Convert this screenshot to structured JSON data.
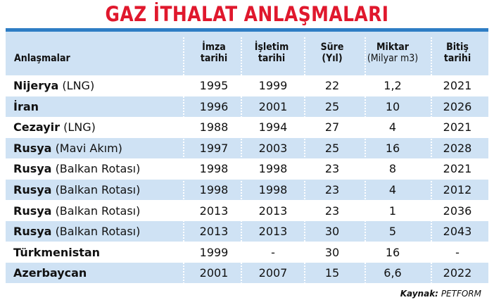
{
  "title": "GAZ İTHALAT ANLAŞMALARI",
  "colors": {
    "title": "#e0182d",
    "header_bg": "#cfe2f4",
    "top_rule": "#2e7dc4"
  },
  "headers": {
    "name": "Anlaşmalar",
    "imza": [
      "İmza",
      "tarihi"
    ],
    "isletim": [
      "İşletim",
      "tarihi"
    ],
    "sure": [
      "Süre",
      "(Yıl)"
    ],
    "miktar": [
      "Miktar",
      "(Milyar m3)"
    ],
    "bitis": [
      "Bitiş",
      "tarihi"
    ]
  },
  "source_label": "Kaynak:",
  "source_value": "PETFORM",
  "chart_data": {
    "type": "table",
    "title": "GAZ İTHALAT ANLAŞMALARI",
    "columns": [
      "Anlaşmalar",
      "İmza tarihi",
      "İşletim tarihi",
      "Süre (Yıl)",
      "Miktar (Milyar m3)",
      "Bitiş tarihi"
    ],
    "rows": [
      {
        "country": "Nijerya",
        "detail": "(LNG)",
        "imza": "1995",
        "isletim": "1999",
        "sure": "22",
        "miktar": "1,2",
        "bitis": "2021"
      },
      {
        "country": "İran",
        "detail": "",
        "imza": "1996",
        "isletim": "2001",
        "sure": "25",
        "miktar": "10",
        "bitis": "2026"
      },
      {
        "country": "Cezayir",
        "detail": "(LNG)",
        "imza": "1988",
        "isletim": "1994",
        "sure": "27",
        "miktar": "4",
        "bitis": "2021"
      },
      {
        "country": "Rusya",
        "detail": "(Mavi Akım)",
        "imza": "1997",
        "isletim": "2003",
        "sure": "25",
        "miktar": "16",
        "bitis": "2028"
      },
      {
        "country": "Rusya",
        "detail": "(Balkan Rotası)",
        "imza": "1998",
        "isletim": "1998",
        "sure": "23",
        "miktar": "8",
        "bitis": "2021"
      },
      {
        "country": "Rusya",
        "detail": "(Balkan Rotası)",
        "imza": "1998",
        "isletim": "1998",
        "sure": "23",
        "miktar": "4",
        "bitis": "2012"
      },
      {
        "country": "Rusya",
        "detail": "(Balkan Rotası)",
        "imza": "2013",
        "isletim": "2013",
        "sure": "23",
        "miktar": "1",
        "bitis": "2036"
      },
      {
        "country": "Rusya",
        "detail": "(Balkan Rotası)",
        "imza": "2013",
        "isletim": "2013",
        "sure": "30",
        "miktar": "5",
        "bitis": "2043"
      },
      {
        "country": "Türkmenistan",
        "detail": "",
        "imza": "1999",
        "isletim": "-",
        "sure": "30",
        "miktar": "16",
        "bitis": "-"
      },
      {
        "country": "Azerbaycan",
        "detail": "",
        "imza": "2001",
        "isletim": "2007",
        "sure": "15",
        "miktar": "6,6",
        "bitis": "2022"
      }
    ]
  }
}
